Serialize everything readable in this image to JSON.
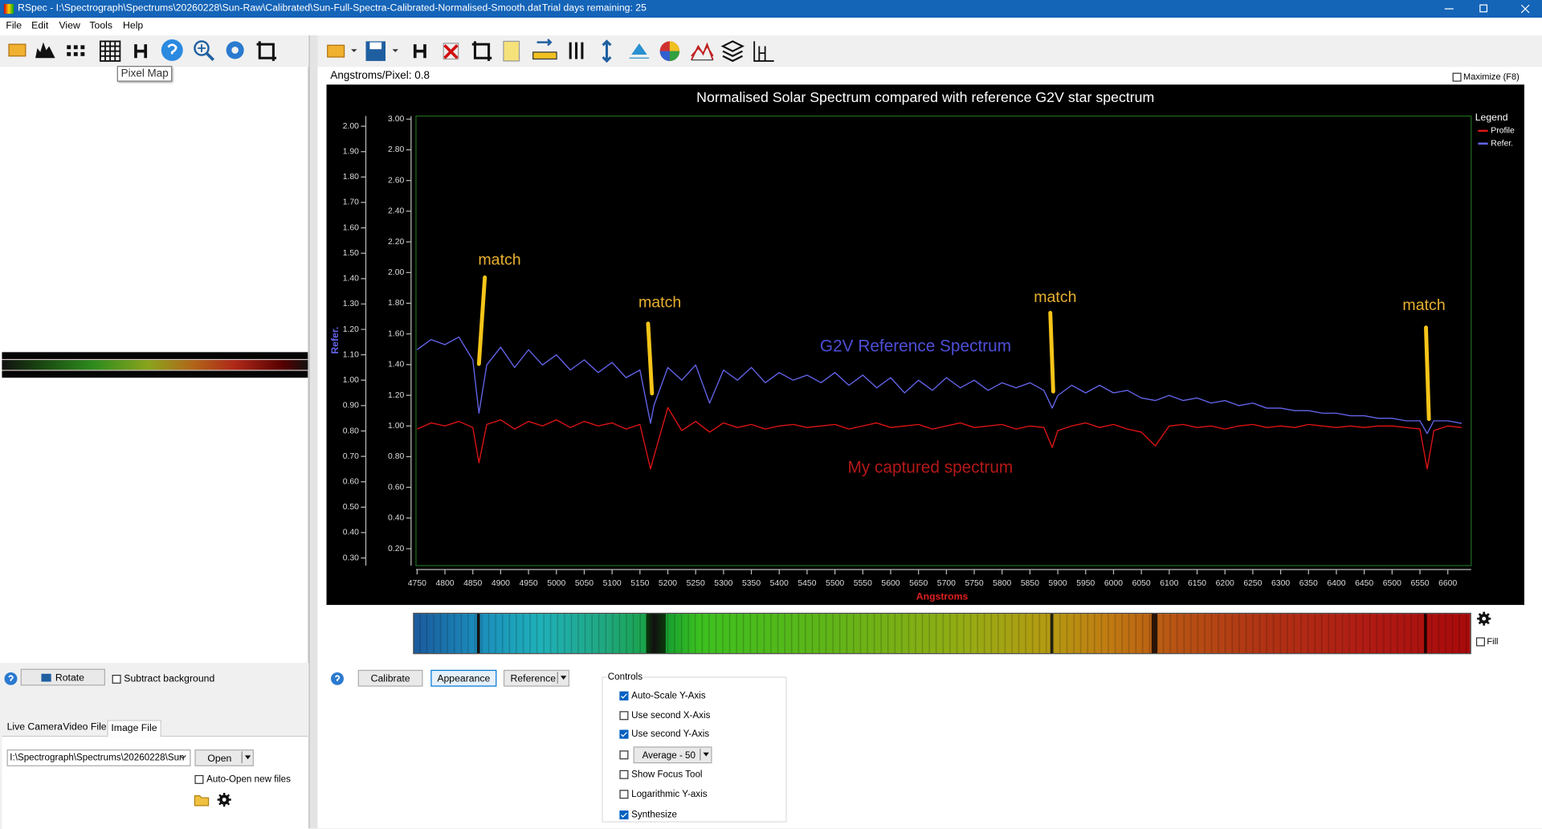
{
  "window": {
    "title": "RSpec - I:\\Spectrograph\\Spectrums\\20260228\\Sun-Raw\\Calibrated\\Sun-Full-Spectra-Calibrated-Normalised-Smooth.dat",
    "trial": "Trial days remaining: 25"
  },
  "menu": [
    "File",
    "Edit",
    "View",
    "Tools",
    "Help"
  ],
  "tooltip": "Pixel Map",
  "left_panel": {
    "rotate": "Rotate",
    "subtract_background": {
      "label": "Subtract background",
      "checked": false
    },
    "tabs": [
      "Live Camera",
      "Video File",
      "Image File"
    ],
    "active_tab": 2,
    "path": "I:\\Spectrograph\\Spectrums\\20260228\\Sun",
    "open": "Open",
    "auto_open": {
      "label": "Auto-Open new files",
      "checked": false
    }
  },
  "angstroms_per_pixel": "Angstroms/Pixel: 0.8",
  "maximize": {
    "label": "Maximize (F8)",
    "checked": false
  },
  "fill": {
    "label": "Fill",
    "checked": false
  },
  "buttons": [
    "Calibrate",
    "Appearance",
    "Reference"
  ],
  "controls": {
    "title": "Controls",
    "items": [
      {
        "label": "Auto-Scale Y-Axis",
        "checked": true
      },
      {
        "label": "Use second X-Axis",
        "checked": false
      },
      {
        "label": "Use second Y-Axis",
        "checked": true
      },
      {
        "label": "Average - 50",
        "checked": false
      },
      {
        "label": "Show Focus Tool",
        "checked": false
      },
      {
        "label": "Logarithmic Y-axis",
        "checked": false
      },
      {
        "label": "Synthesize",
        "checked": true
      }
    ]
  },
  "chart_data": {
    "type": "line",
    "title": "Normalised Solar Spectrum compared with reference G2V star spectrum",
    "x_label": "Angstroms",
    "y2_label": "Refer.",
    "legend_title": "Legend",
    "legend": "upper right",
    "grid": false,
    "annotations": [
      "match",
      "match",
      "match",
      "match",
      "G2V Reference Spectrum",
      "My captured spectrum"
    ],
    "x": [
      4750,
      4775,
      4800,
      4825,
      4850,
      4861,
      4875,
      4900,
      4925,
      4950,
      4975,
      5000,
      5025,
      5050,
      5075,
      5100,
      5125,
      5150,
      5169,
      5175,
      5200,
      5225,
      5250,
      5275,
      5300,
      5325,
      5350,
      5375,
      5400,
      5425,
      5450,
      5475,
      5500,
      5525,
      5550,
      5575,
      5600,
      5625,
      5650,
      5675,
      5700,
      5725,
      5750,
      5775,
      5800,
      5825,
      5850,
      5875,
      5890,
      5900,
      5925,
      5950,
      5975,
      6000,
      6025,
      6050,
      6075,
      6100,
      6125,
      6150,
      6175,
      6200,
      6225,
      6250,
      6275,
      6300,
      6325,
      6350,
      6375,
      6400,
      6425,
      6450,
      6475,
      6500,
      6525,
      6550,
      6563,
      6575,
      6600,
      6625
    ],
    "series": [
      {
        "name": "Profile",
        "color": "#e01414",
        "values": [
          0.98,
          1.02,
          1.0,
          1.03,
          0.99,
          0.76,
          1.01,
          1.04,
          0.98,
          1.03,
          1.0,
          1.04,
          0.99,
          1.03,
          1.0,
          1.02,
          0.98,
          1.01,
          0.72,
          0.8,
          1.12,
          0.97,
          1.03,
          0.96,
          1.02,
          0.99,
          1.01,
          0.98,
          1.0,
          1.01,
          0.99,
          1.0,
          1.01,
          0.98,
          1.0,
          1.02,
          0.99,
          1.0,
          1.01,
          0.98,
          1.0,
          1.02,
          0.99,
          1.0,
          1.01,
          0.98,
          1.0,
          0.99,
          0.86,
          0.97,
          1.0,
          1.02,
          0.99,
          1.01,
          0.98,
          0.96,
          0.87,
          1.0,
          1.01,
          0.99,
          1.0,
          0.98,
          1.0,
          1.01,
          0.99,
          1.0,
          0.99,
          1.01,
          1.0,
          0.99,
          1.0,
          0.99,
          1.0,
          1.0,
          0.99,
          0.98,
          0.72,
          0.97,
          1.0,
          0.99
        ]
      },
      {
        "name": "Refer.",
        "color": "#6464ec",
        "axis": "y2",
        "values": [
          1.12,
          1.16,
          1.14,
          1.17,
          1.08,
          0.87,
          1.06,
          1.13,
          1.05,
          1.12,
          1.06,
          1.1,
          1.04,
          1.08,
          1.03,
          1.07,
          1.01,
          1.04,
          0.83,
          0.9,
          1.05,
          1.0,
          1.06,
          0.91,
          1.04,
          1.0,
          1.05,
          0.99,
          1.03,
          1.0,
          1.02,
          0.99,
          1.03,
          0.98,
          1.02,
          0.97,
          1.01,
          0.95,
          1.0,
          0.96,
          1.01,
          0.97,
          1.0,
          0.96,
          0.99,
          0.97,
          0.99,
          0.96,
          0.89,
          0.94,
          0.98,
          0.95,
          0.98,
          0.95,
          0.96,
          0.93,
          0.92,
          0.94,
          0.92,
          0.93,
          0.91,
          0.92,
          0.9,
          0.91,
          0.89,
          0.89,
          0.88,
          0.88,
          0.87,
          0.87,
          0.86,
          0.86,
          0.85,
          0.85,
          0.84,
          0.84,
          0.79,
          0.84,
          0.84,
          0.83
        ]
      }
    ],
    "xlim": [
      4748,
      6642
    ],
    "xticks": [
      4750,
      4800,
      4850,
      4900,
      4950,
      5000,
      5050,
      5100,
      5150,
      5200,
      5250,
      5300,
      5350,
      5400,
      5450,
      5500,
      5550,
      5600,
      5650,
      5700,
      5750,
      5800,
      5850,
      5900,
      5950,
      6000,
      6050,
      6100,
      6150,
      6200,
      6250,
      6300,
      6350,
      6400,
      6450,
      6500,
      6550,
      6600
    ],
    "ylim": [
      0.09,
      3.02
    ],
    "yticks": [
      {
        "value": 0.2,
        "label": "0.20"
      },
      {
        "value": 0.4,
        "label": "0.40"
      },
      {
        "value": 0.6,
        "label": "0.60"
      },
      {
        "value": 0.8,
        "label": "0.80"
      },
      {
        "value": 1.0,
        "label": "1.00"
      },
      {
        "value": 1.2,
        "label": "1.20"
      },
      {
        "value": 1.4,
        "label": "1.40"
      },
      {
        "value": 1.6,
        "label": "1.60"
      },
      {
        "value": 1.8,
        "label": "1.80"
      },
      {
        "value": 2.0,
        "label": "2.00"
      },
      {
        "value": 2.2,
        "label": "2.20"
      },
      {
        "value": 2.4,
        "label": "2.40"
      },
      {
        "value": 2.6,
        "label": "2.60"
      },
      {
        "value": 2.8,
        "label": "2.80"
      },
      {
        "value": 3.0,
        "label": "3.00"
      }
    ],
    "y2lim": [
      0.27,
      2.04
    ],
    "y2ticks": [
      {
        "value": 0.3,
        "label": "0.30"
      },
      {
        "value": 0.4,
        "label": "0.40"
      },
      {
        "value": 0.5,
        "label": "0.50"
      },
      {
        "value": 0.6,
        "label": "0.60"
      },
      {
        "value": 0.7,
        "label": "0.70"
      },
      {
        "value": 0.8,
        "label": "0.80"
      },
      {
        "value": 0.9,
        "label": "0.90"
      },
      {
        "value": 1.0,
        "label": "1.00"
      },
      {
        "value": 1.1,
        "label": "1.10"
      },
      {
        "value": 1.2,
        "label": "1.20"
      },
      {
        "value": 1.3,
        "label": "1.30"
      },
      {
        "value": 1.4,
        "label": "1.40"
      },
      {
        "value": 1.5,
        "label": "1.50"
      },
      {
        "value": 1.6,
        "label": "1.60"
      },
      {
        "value": 1.7,
        "label": "1.70"
      },
      {
        "value": 1.8,
        "label": "1.80"
      },
      {
        "value": 1.9,
        "label": "1.90"
      },
      {
        "value": 2.0,
        "label": "2.00"
      }
    ]
  }
}
